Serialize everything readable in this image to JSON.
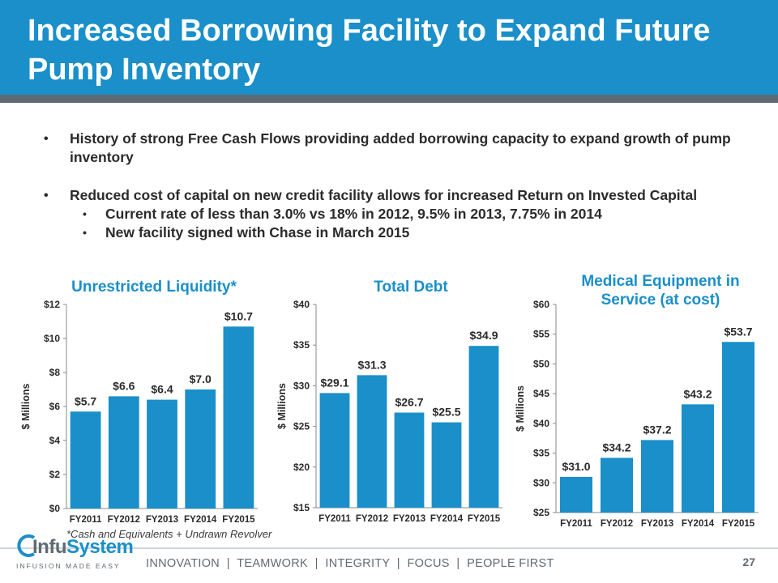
{
  "slide": {
    "title": "Increased Borrowing Facility to Expand Future Pump Inventory",
    "bullets": [
      "History of strong Free Cash Flows providing added borrowing capacity to expand growth of pump inventory",
      "Reduced cost of capital on new credit facility allows for increased Return on Invested Capital"
    ],
    "sub_bullets": [
      "Current rate of less than 3.0% vs 18% in 2012, 9.5% in 2013, 7.75% in 2014",
      "New facility signed with Chase in March 2015"
    ],
    "footnote": "*Cash and Equivalents + Undrawn Revolver",
    "tagline": "INNOVATION  |  TEAMWORK  |  INTEGRITY  |  FOCUS  |  PEOPLE FIRST",
    "page_number": "27",
    "logo": {
      "prefix": "Infu",
      "suffix": "System",
      "tagline": "INFUSION MADE EASY"
    },
    "colors": {
      "brand": "#1a8fc9",
      "bar": "#1a8fc9",
      "gray": "#5f6b74"
    }
  },
  "chart_data": [
    {
      "type": "bar",
      "title": "Unrestricted Liquidity*",
      "ylabel": "$ Millions",
      "categories": [
        "FY2011",
        "FY2012",
        "FY2013",
        "FY2014",
        "FY2015"
      ],
      "values": [
        5.7,
        6.6,
        6.4,
        7.0,
        10.7
      ],
      "data_labels": [
        "$5.7",
        "$6.6",
        "$6.4",
        "$7.0",
        "$10.7"
      ],
      "ylim": [
        0,
        12
      ],
      "yticks": [
        0,
        2,
        4,
        6,
        8,
        10,
        12
      ],
      "ytick_labels": [
        "$0",
        "$2",
        "$4",
        "$6",
        "$8",
        "$10",
        "$12"
      ]
    },
    {
      "type": "bar",
      "title": "Total Debt",
      "ylabel": "$ Millions",
      "categories": [
        "FY2011",
        "FY2012",
        "FY2013",
        "FY2014",
        "FY2015"
      ],
      "values": [
        29.1,
        31.3,
        26.7,
        25.5,
        34.9
      ],
      "data_labels": [
        "$29.1",
        "$31.3",
        "$26.7",
        "$25.5",
        "$34.9"
      ],
      "ylim": [
        15,
        40
      ],
      "yticks": [
        15,
        20,
        25,
        30,
        35,
        40
      ],
      "ytick_labels": [
        "$15",
        "$20",
        "$25",
        "$30",
        "$35",
        "$40"
      ]
    },
    {
      "type": "bar",
      "title": "Medical Equipment in Service (at cost)",
      "ylabel": "$ Millions",
      "categories": [
        "FY2011",
        "FY2012",
        "FY2013",
        "FY2014",
        "FY2015"
      ],
      "values": [
        31.0,
        34.2,
        37.2,
        43.2,
        53.7
      ],
      "data_labels": [
        "$31.0",
        "$34.2",
        "$37.2",
        "$43.2",
        "$53.7"
      ],
      "ylim": [
        25,
        60
      ],
      "yticks": [
        25,
        30,
        35,
        40,
        45,
        50,
        55,
        60
      ],
      "ytick_labels": [
        "$25",
        "$30",
        "$35",
        "$40",
        "$45",
        "$50",
        "$55",
        "$60"
      ]
    }
  ]
}
